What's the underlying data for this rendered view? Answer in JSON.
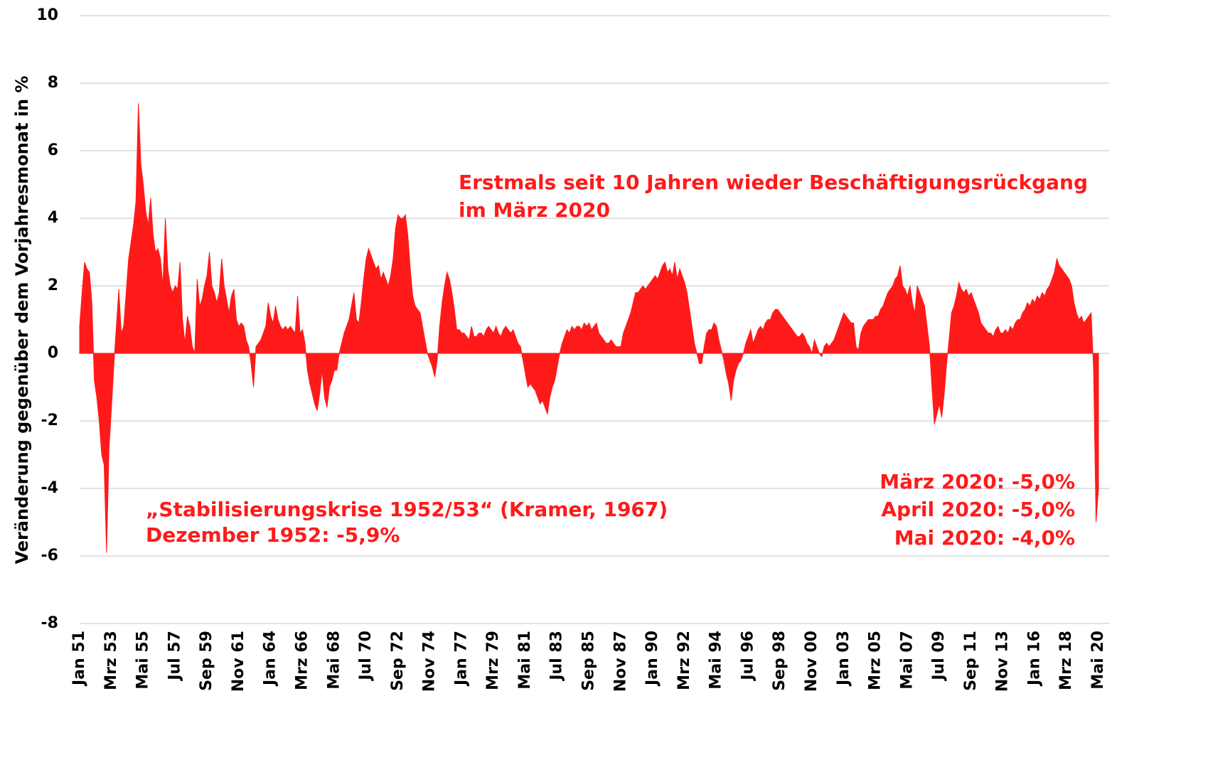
{
  "chart_data": {
    "type": "area",
    "y_label": "Veränderung gegenüber dem Vorjahresmonat in %",
    "annotations": [
      "Erstmals seit 10 Jahren wieder Beschäftigungsrückgang",
      "im März 2020",
      "„Stabilisierungskrise 1952/53“ (Kramer, 1967)",
      "Dezember 1952: -5,9%",
      "März 2020: -5,0%",
      "April 2020: -5,0%",
      "Mai 2020: -4,0%"
    ],
    "color": "#ff1a1a",
    "ylim": [
      -8,
      10
    ],
    "yticks": [
      -8,
      -6,
      -4,
      -2,
      0,
      2,
      4,
      6,
      8,
      10
    ],
    "grid": true,
    "categories": [
      "Jan 51",
      null,
      null,
      null,
      null,
      null,
      null,
      null,
      null,
      null,
      null,
      null,
      null,
      "Mrz 53",
      null,
      null,
      null,
      null,
      null,
      null,
      null,
      null,
      null,
      null,
      null,
      null,
      "Mai 55",
      null,
      null,
      null,
      null,
      null,
      null,
      null,
      null,
      null,
      null,
      null,
      null,
      "Jul 57",
      null,
      null,
      null,
      null,
      null,
      null,
      null,
      null,
      null,
      null,
      null,
      null,
      "Sep 59",
      null,
      null,
      null,
      null,
      null,
      null,
      null,
      null,
      null,
      null,
      null,
      null,
      "Nov 61",
      null,
      null,
      null,
      null,
      null,
      null,
      null,
      null,
      null,
      null,
      null,
      null,
      "Jan 64",
      null,
      null,
      null,
      null,
      null,
      null,
      null,
      null,
      null,
      null,
      null,
      null,
      "Mrz 66",
      null,
      null,
      null,
      null,
      null,
      null,
      null,
      null,
      null,
      null,
      null,
      null,
      "Mai 68",
      null,
      null,
      null,
      null,
      null,
      null,
      null,
      null,
      null,
      null,
      null,
      null,
      "Jul 70",
      null,
      null,
      null,
      null,
      null,
      null,
      null,
      null,
      null,
      null,
      null,
      null,
      "Sep 72",
      null,
      null,
      null,
      null,
      null,
      null,
      null,
      null,
      null,
      null,
      null,
      null,
      "Nov 74",
      null,
      null,
      null,
      null,
      null,
      null,
      null,
      null,
      null,
      null,
      null,
      null,
      "Jan 77",
      null,
      null,
      null,
      null,
      null,
      null,
      null,
      null,
      null,
      null,
      null,
      null,
      "Mrz 79",
      null,
      null,
      null,
      null,
      null,
      null,
      null,
      null,
      null,
      null,
      null,
      null,
      "Mai 81",
      null,
      null,
      null,
      null,
      null,
      null,
      null,
      null,
      null,
      null,
      null,
      null,
      "Jul 83",
      null,
      null,
      null,
      null,
      null,
      null,
      null,
      null,
      null,
      null,
      null,
      null,
      "Sep 85",
      null,
      null,
      null,
      null,
      null,
      null,
      null,
      null,
      null,
      null,
      null,
      null,
      "Nov 87",
      null,
      null,
      null,
      null,
      null,
      null,
      null,
      null,
      null,
      null,
      null,
      null,
      "Jan 90",
      null,
      null,
      null,
      null,
      null,
      null,
      null,
      null,
      null,
      null,
      null,
      null,
      "Mrz 92",
      null,
      null,
      null,
      null,
      null,
      null,
      null,
      null,
      null,
      null,
      null,
      null,
      "Mai 94",
      null,
      null,
      null,
      null,
      null,
      null,
      null,
      null,
      null,
      null,
      null,
      null,
      "Jul 96",
      null,
      null,
      null,
      null,
      null,
      null,
      null,
      null,
      null,
      null,
      null,
      null,
      "Sep 98",
      null,
      null,
      null,
      null,
      null,
      null,
      null,
      null,
      null,
      null,
      null,
      null,
      "Nov 00",
      null,
      null,
      null,
      null,
      null,
      null,
      null,
      null,
      null,
      null,
      null,
      null,
      "Jan 03",
      null,
      null,
      null,
      null,
      null,
      null,
      null,
      null,
      null,
      null,
      null,
      null,
      "Mrz 05",
      null,
      null,
      null,
      null,
      null,
      null,
      null,
      null,
      null,
      null,
      null,
      null,
      "Mai 07",
      null,
      null,
      null,
      null,
      null,
      null,
      null,
      null,
      null,
      null,
      null,
      null,
      "Jul 09",
      null,
      null,
      null,
      null,
      null,
      null,
      null,
      null,
      null,
      null,
      null,
      null,
      "Sep 11",
      null,
      null,
      null,
      null,
      null,
      null,
      null,
      null,
      null,
      null,
      null,
      null,
      "Nov 13",
      null,
      null,
      null,
      null,
      null,
      null,
      null,
      null,
      null,
      null,
      null,
      null,
      "Jan 16",
      null,
      null,
      null,
      null,
      null,
      null,
      null,
      null,
      null,
      null,
      null,
      null,
      "Mrz 18",
      null,
      null,
      null,
      null,
      null,
      null,
      null,
      null,
      null,
      null,
      null,
      null,
      "Mai 20"
    ],
    "values": [
      0.8,
      1.8,
      2.7,
      2.5,
      2.4,
      1.5,
      -0.8,
      -1.3,
      -2.0,
      -3.0,
      -3.3,
      -5.9,
      -2.8,
      -1.6,
      -0.3,
      0.8,
      1.9,
      0.6,
      0.8,
      1.8,
      2.8,
      3.3,
      3.8,
      4.5,
      7.4,
      5.6,
      5.0,
      4.2,
      3.8,
      4.6,
      3.5,
      3.0,
      3.1,
      2.8,
      2.0,
      4.0,
      2.5,
      2.0,
      1.8,
      2.0,
      1.9,
      2.7,
      1.0,
      0.3,
      1.1,
      0.8,
      0.2,
      0.0,
      2.2,
      1.4,
      1.6,
      2.0,
      2.3,
      3.0,
      2.0,
      1.8,
      1.5,
      1.8,
      2.8,
      2.0,
      1.6,
      1.2,
      1.7,
      1.9,
      1.0,
      0.8,
      0.9,
      0.8,
      0.4,
      0.2,
      -0.3,
      -1.0,
      0.2,
      0.3,
      0.4,
      0.6,
      0.8,
      1.5,
      1.1,
      0.9,
      1.4,
      1.0,
      0.8,
      0.7,
      0.8,
      0.7,
      0.8,
      0.7,
      0.6,
      1.7,
      0.6,
      0.7,
      0.3,
      -0.5,
      -0.9,
      -1.2,
      -1.5,
      -1.7,
      -1.2,
      -0.5,
      -1.3,
      -1.6,
      -1.0,
      -0.8,
      -0.5,
      -0.5,
      0.0,
      0.3,
      0.6,
      0.8,
      1.0,
      1.4,
      1.8,
      1.0,
      0.9,
      1.5,
      2.2,
      2.8,
      3.1,
      2.9,
      2.7,
      2.5,
      2.6,
      2.2,
      2.4,
      2.2,
      2.0,
      2.3,
      2.8,
      3.7,
      4.1,
      4.0,
      4.0,
      4.1,
      3.5,
      2.5,
      1.7,
      1.4,
      1.3,
      1.2,
      0.8,
      0.4,
      0.0,
      -0.2,
      -0.4,
      -0.7,
      -0.2,
      0.8,
      1.5,
      2.0,
      2.4,
      2.2,
      1.8,
      1.3,
      0.7,
      0.7,
      0.6,
      0.6,
      0.5,
      0.4,
      0.8,
      0.5,
      0.5,
      0.6,
      0.6,
      0.5,
      0.7,
      0.8,
      0.7,
      0.6,
      0.8,
      0.6,
      0.5,
      0.7,
      0.8,
      0.7,
      0.6,
      0.7,
      0.5,
      0.3,
      0.2,
      -0.2,
      -0.6,
      -1.0,
      -0.9,
      -1.0,
      -1.1,
      -1.3,
      -1.5,
      -1.4,
      -1.6,
      -1.8,
      -1.3,
      -1.0,
      -0.8,
      -0.4,
      0.0,
      0.3,
      0.5,
      0.7,
      0.6,
      0.8,
      0.7,
      0.8,
      0.8,
      0.7,
      0.9,
      0.8,
      0.9,
      0.7,
      0.8,
      0.9,
      0.6,
      0.5,
      0.4,
      0.3,
      0.3,
      0.4,
      0.3,
      0.2,
      0.2,
      0.2,
      0.6,
      0.8,
      1.0,
      1.2,
      1.5,
      1.8,
      1.8,
      1.9,
      2.0,
      1.9,
      2.0,
      2.1,
      2.2,
      2.3,
      2.2,
      2.4,
      2.6,
      2.7,
      2.4,
      2.5,
      2.3,
      2.7,
      2.2,
      2.5,
      2.3,
      2.1,
      1.8,
      1.3,
      0.8,
      0.3,
      0.0,
      -0.3,
      -0.3,
      0.2,
      0.6,
      0.7,
      0.7,
      0.9,
      0.8,
      0.4,
      0.1,
      -0.2,
      -0.6,
      -0.9,
      -1.4,
      -0.8,
      -0.5,
      -0.3,
      -0.2,
      0.0,
      0.3,
      0.5,
      0.7,
      0.3,
      0.5,
      0.7,
      0.8,
      0.7,
      0.9,
      1.0,
      1.0,
      1.2,
      1.3,
      1.3,
      1.2,
      1.1,
      1.0,
      0.9,
      0.8,
      0.7,
      0.6,
      0.5,
      0.5,
      0.6,
      0.5,
      0.3,
      0.2,
      0.0,
      0.4,
      0.2,
      0.0,
      -0.1,
      0.2,
      0.3,
      0.2,
      0.3,
      0.4,
      0.6,
      0.8,
      1.0,
      1.2,
      1.1,
      1.0,
      0.9,
      0.9,
      0.2,
      0.1,
      0.6,
      0.8,
      0.9,
      1.0,
      1.0,
      1.0,
      1.1,
      1.1,
      1.3,
      1.4,
      1.6,
      1.8,
      1.9,
      2.0,
      2.2,
      2.3,
      2.6,
      2.0,
      1.9,
      1.7,
      2.0,
      1.5,
      1.2,
      2.0,
      1.8,
      1.6,
      1.4,
      0.8,
      0.2,
      -1.0,
      -2.1,
      -1.8,
      -1.5,
      -1.9,
      -1.2,
      -0.3,
      0.4,
      1.2,
      1.4,
      1.7,
      2.1,
      1.9,
      1.8,
      1.9,
      1.7,
      1.8,
      1.6,
      1.4,
      1.2,
      0.9,
      0.8,
      0.7,
      0.6,
      0.6,
      0.5,
      0.7,
      0.8,
      0.6,
      0.6,
      0.7,
      0.6,
      0.8,
      0.7,
      0.9,
      1.0,
      1.0,
      1.2,
      1.3,
      1.5,
      1.4,
      1.6,
      1.5,
      1.7,
      1.6,
      1.8,
      1.7,
      1.9,
      2.0,
      2.2,
      2.4,
      2.8,
      2.6,
      2.5,
      2.4,
      2.3,
      2.2,
      2.0,
      1.5,
      1.2,
      1.0,
      1.1,
      0.9,
      1.0,
      1.1,
      1.2,
      -0.5,
      -5.0,
      -4.0
    ]
  }
}
